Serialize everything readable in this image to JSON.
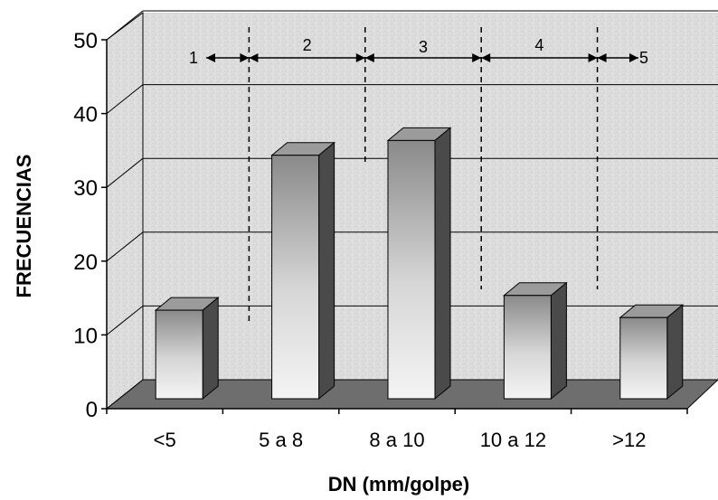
{
  "chart_data": {
    "type": "bar",
    "title": "",
    "xlabel": "DN (mm/golpe)",
    "ylabel": "FRECUENCIAS",
    "categories": [
      "<5",
      "5 a 8",
      "8 a 10",
      "10 a 12",
      ">12"
    ],
    "values": [
      12,
      33,
      35,
      14,
      11
    ],
    "ylim": [
      0,
      50
    ],
    "yticks": [
      "0",
      "10",
      "20",
      "30",
      "40",
      "50"
    ],
    "grid": true,
    "legend": "none",
    "zones": [
      {
        "label": "1"
      },
      {
        "label": "2"
      },
      {
        "label": "3"
      },
      {
        "label": "4"
      },
      {
        "label": "5"
      }
    ],
    "zone_boundaries": [
      5,
      8,
      10,
      12
    ],
    "colors": {
      "bar_front_light": "#f2f2f2",
      "bar_front_dark": "#8a8a8a",
      "bar_top": "#9b9b9b",
      "bar_side": "#4a4a4a",
      "wall": "#d9d9d9",
      "floor": "#6e6e6e",
      "grid": "#000000"
    }
  }
}
